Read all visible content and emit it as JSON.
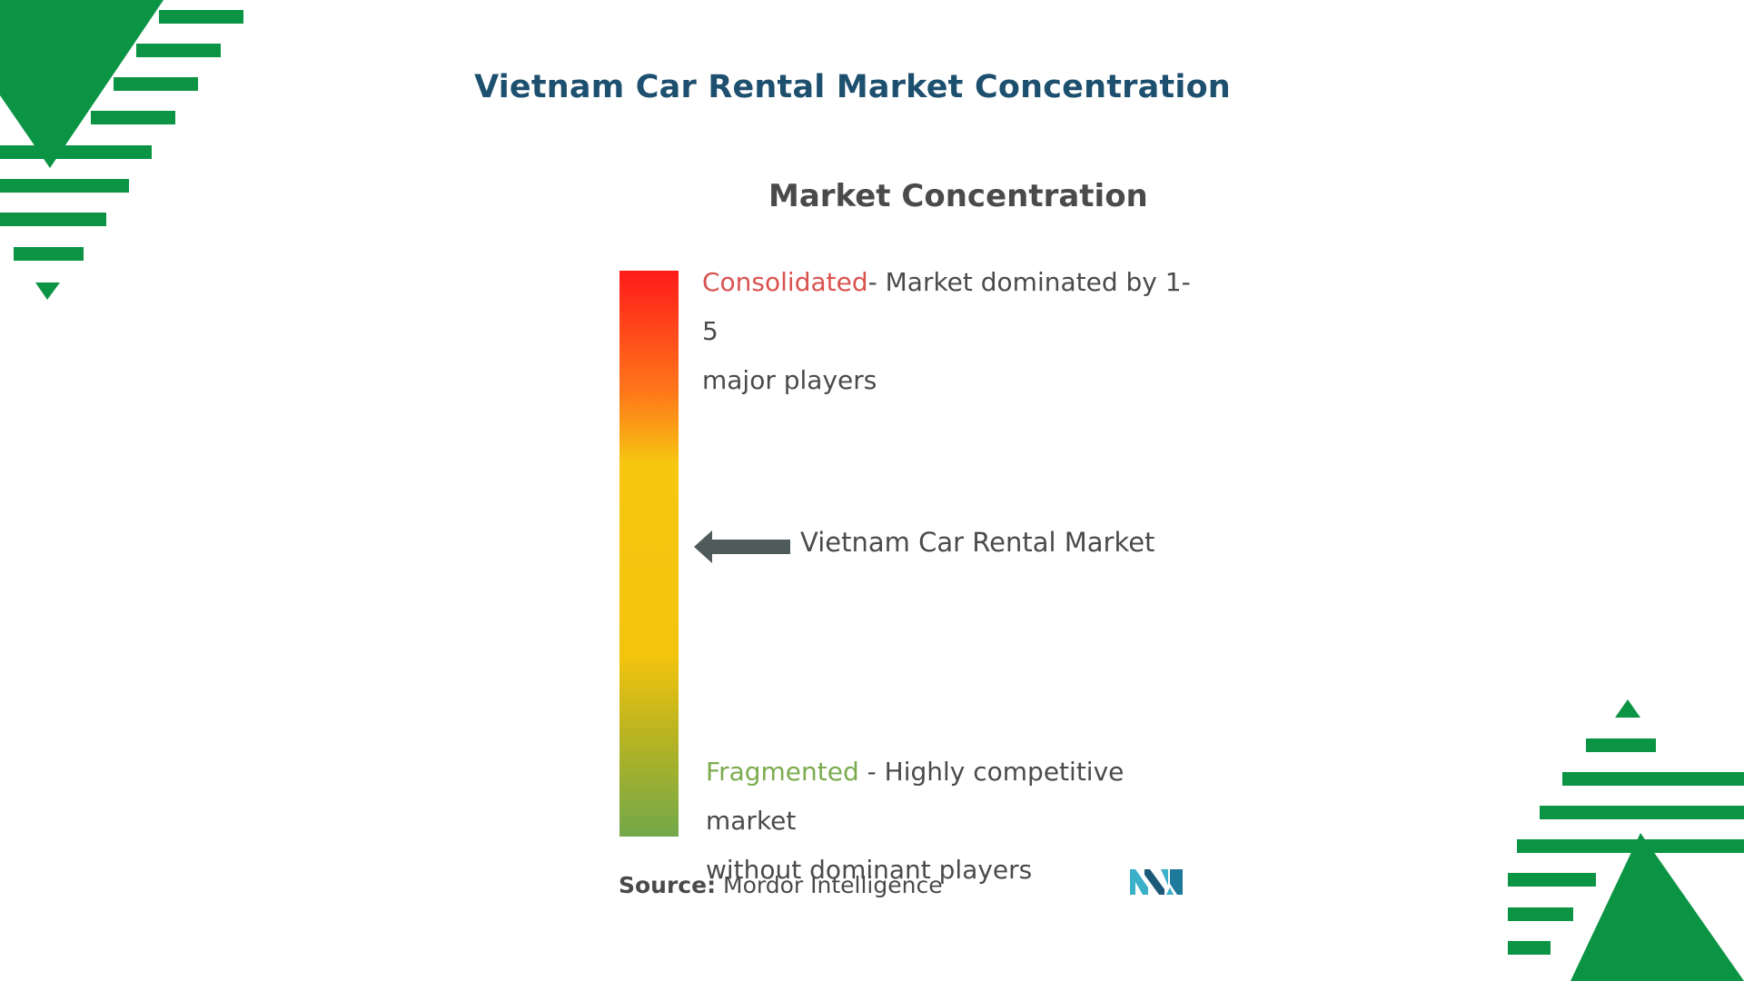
{
  "title": "Vietnam Car Rental Market Concentration",
  "chart": {
    "heading": "Market Concentration",
    "consolidated_keyword": "Consolidated",
    "consolidated_desc_1": "- Market dominated by 1-5",
    "consolidated_desc_2": "major players",
    "fragmented_keyword": "Fragmented",
    "fragmented_desc_1": " - Highly competitive market",
    "fragmented_desc_2": "without dominant players",
    "marker_label": "Vietnam Car Rental Market",
    "scale_colors": [
      "#ff1a1a",
      "#ff7a1a",
      "#f6c611",
      "#f3c40e",
      "#b9b421",
      "#72a849"
    ]
  },
  "source": {
    "label": "Source:",
    "value": "Mordor Intelligence"
  },
  "colors": {
    "title": "#1d4f6e",
    "accent_green": "#0a9444",
    "consolidated": "#d9534f",
    "fragmented": "#7cab4f"
  }
}
